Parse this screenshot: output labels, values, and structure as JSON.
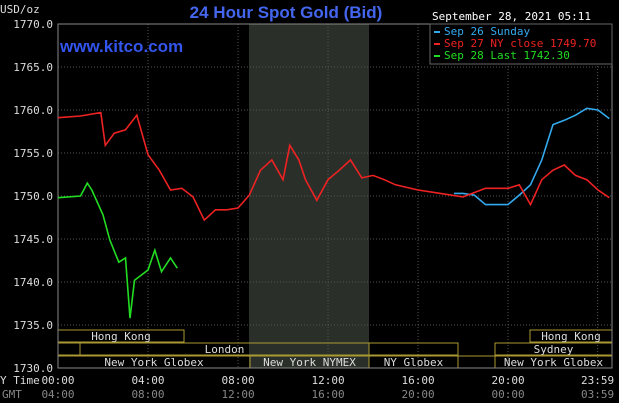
{
  "chart_data": {
    "type": "line",
    "title": "24 Hour Spot Gold (Bid)",
    "y_unit": "USD/oz",
    "timestamp": "September 28, 2021 05:11",
    "watermark": "www.kitco.com",
    "xlim": [
      0,
      24.62
    ],
    "ylim": [
      1730,
      1770
    ],
    "xticks": [
      {
        "value": 0,
        "label": "00:00"
      },
      {
        "value": 4,
        "label": "04:00"
      },
      {
        "value": 8,
        "label": "08:00"
      },
      {
        "value": 12,
        "label": "12:00"
      },
      {
        "value": 16,
        "label": "16:00"
      },
      {
        "value": 20,
        "label": "20:00"
      },
      {
        "value": 23.98,
        "label": "23:59"
      }
    ],
    "gmt_labels": [
      "04:00",
      "08:00",
      "12:00",
      "16:00",
      "20:00",
      "00:00",
      "03:59"
    ],
    "x_label": "Y Time",
    "gmt_label": "GMT",
    "yticks": [
      {
        "value": 1730,
        "label": "1730.0"
      },
      {
        "value": 1735,
        "label": "1735.0"
      },
      {
        "value": 1740,
        "label": "1740.0"
      },
      {
        "value": 1745,
        "label": "1745.0"
      },
      {
        "value": 1750,
        "label": "1750.0"
      },
      {
        "value": 1755,
        "label": "1755.0"
      },
      {
        "value": 1760,
        "label": "1760.0"
      },
      {
        "value": 1765,
        "label": "1765.0"
      },
      {
        "value": 1770,
        "label": "1770.0"
      }
    ],
    "grid": true,
    "sessions": [
      "Hong Kong",
      "Hong Kong",
      "London",
      "Sydney",
      "New York Globex",
      "New York NYMEX",
      "NY Globex",
      "New York Globex"
    ],
    "series": [
      {
        "name": "Sep 26 Sunday",
        "color": "#33aaee",
        "x": [
          17.6,
          18,
          18.5,
          19,
          19.5,
          20,
          20.5,
          21,
          21.5,
          22,
          22.5,
          23,
          23.5,
          24,
          24.5
        ],
        "values": [
          1750.3,
          1750.3,
          1750.1,
          1749,
          1749,
          1749,
          1750.1,
          1751.3,
          1754.2,
          1758.3,
          1758.8,
          1759.4,
          1760.2,
          1760,
          1759
        ]
      },
      {
        "name": "Sep 27 NY close 1749.70",
        "color": "#ee2222",
        "x": [
          0,
          1,
          1.9,
          2.1,
          2.5,
          3,
          3.5,
          4,
          4.5,
          5,
          5.5,
          6,
          6.5,
          7,
          7.5,
          8,
          8.5,
          9,
          9.5,
          10,
          10.3,
          10.7,
          11,
          11.5,
          12,
          12.5,
          13,
          13.5,
          14,
          14.5,
          15,
          16,
          17,
          18,
          19,
          20,
          20.5,
          21,
          21.5,
          22,
          22.5,
          23,
          23.5,
          24,
          24.5
        ],
        "values": [
          1759.1,
          1759.3,
          1759.7,
          1755.9,
          1757.3,
          1757.7,
          1759.4,
          1754.8,
          1753,
          1750.7,
          1750.9,
          1749.9,
          1747.2,
          1748.4,
          1748.4,
          1748.6,
          1750.1,
          1753,
          1754.2,
          1751.9,
          1755.9,
          1754.2,
          1751.9,
          1749.5,
          1751.9,
          1753,
          1754.2,
          1752.1,
          1752.4,
          1751.9,
          1751.3,
          1750.7,
          1750.3,
          1749.9,
          1750.9,
          1750.9,
          1751.3,
          1749,
          1751.9,
          1753,
          1753.6,
          1752.4,
          1751.9,
          1750.7,
          1749.8
        ]
      },
      {
        "name": "Sep 28 Last 1742.30",
        "color": "#22dd22",
        "x": [
          0,
          1,
          1.3,
          1.5,
          2,
          2.3,
          2.7,
          3,
          3.2,
          3.4,
          3.7,
          4,
          4.3,
          4.6,
          5,
          5.3
        ],
        "values": [
          1749.8,
          1750,
          1751.5,
          1750.7,
          1747.8,
          1744.9,
          1742.3,
          1742.8,
          1735.8,
          1740.2,
          1740.8,
          1741.4,
          1743.7,
          1741.2,
          1742.8,
          1741.6
        ]
      }
    ]
  }
}
